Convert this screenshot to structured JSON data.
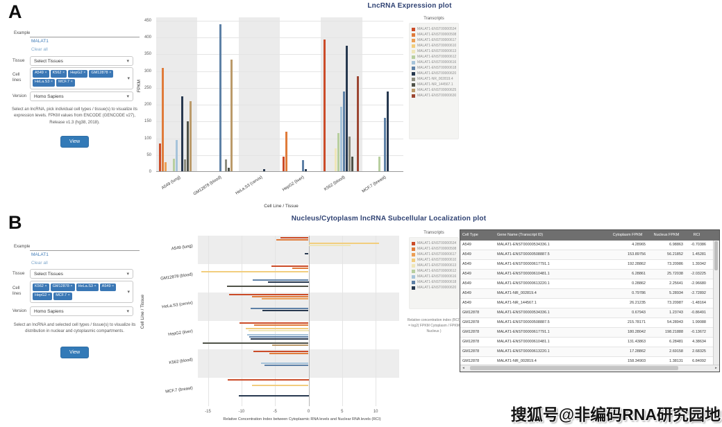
{
  "watermark": "搜狐号@非编码RNA研究园地",
  "panelA": {
    "section_label": "A",
    "title": "LncRNA Expression plot",
    "legend_title": "Transcripts",
    "sidebar": {
      "example_label": "Example",
      "gene_link": "MALAT1",
      "clear_link": "Clear all",
      "tissue_label": "Tissue",
      "tissue_value": "Select Tissues",
      "cells_label": "Cell lines",
      "cell_tags": [
        "A549",
        "K562",
        "HepG2",
        "GM12878",
        "HeLa.S3",
        "MCF.7"
      ],
      "version_label": "Version",
      "version_value": "Homo Sapiens",
      "help_text": "Select an lncRNA, pick individual cell types / tissue(s) to visualize its expression levels. FPKM values from ENCODE (GENCODE v27), Release v1.3 (hg38, 2018).",
      "view_button": "View"
    }
  },
  "panelB": {
    "section_label": "B",
    "title": "Nucleus/Cytoplasm lncRNA Subcellular Localization plot",
    "legend_title": "Transcripts",
    "legend_note": "Relative concentration index (RCI) = log2( FPKM Cytoplasm / FPKM Nucleus )",
    "sidebar": {
      "example_label": "Example",
      "gene_link": "MALAT1",
      "clear_link": "Clear all",
      "tissue_label": "Tissue",
      "tissue_value": "Select Tissues",
      "cells_label": "Cell lines",
      "cell_tags": [
        "K562",
        "GM12878",
        "HeLa.S3",
        "A549",
        "HepG2",
        "MCF.7"
      ],
      "version_label": "Version",
      "version_value": "Homo Sapiens",
      "help_text": "Select an lncRNA and selected cell types / tissue(s) to visualize its distribution in nuclear and cytoplasmic compartments.",
      "view_button": "View"
    }
  },
  "chart_data": [
    {
      "type": "bar",
      "title": "LncRNA Expression plot",
      "xlabel": "Cell Line / Tissue",
      "ylabel": "FPKM",
      "ylim": [
        0,
        460
      ],
      "yticks": [
        0,
        50,
        100,
        150,
        200,
        250,
        300,
        350,
        400,
        450
      ],
      "grid": true,
      "legend_position": "right",
      "categories": [
        "A549 (lung)",
        "GM12878 (blood)",
        "HeLa.S3 (cervix)",
        "HepG2 (liver)",
        "K562 (blood)",
        "MCF.7 (breast)"
      ],
      "series": [
        {
          "name": "MALAT1-ENST00000534336.1",
          "color": "#cb4b28",
          "values": [
            85,
            0,
            0,
            45,
            395,
            0
          ]
        },
        {
          "name": "MALAT1-ENST00000508887.5",
          "color": "#e07b3a",
          "values": [
            310,
            0,
            0,
            120,
            0,
            0
          ]
        },
        {
          "name": "MALAT1-ENST00000617791.1",
          "color": "#ec9f55",
          "values": [
            30,
            0,
            0,
            0,
            0,
            0
          ]
        },
        {
          "name": "MALAT1-ENST00000610481.1",
          "color": "#f2cd7d",
          "values": [
            0,
            0,
            0,
            0,
            0,
            0
          ]
        },
        {
          "name": "MALAT1-ENST00000613220.1",
          "color": "#efe6b8",
          "values": [
            0,
            0,
            0,
            0,
            70,
            0
          ]
        },
        {
          "name": "MALAT1-ENST00000612068.1",
          "color": "#b8cf9f",
          "values": [
            40,
            0,
            0,
            0,
            115,
            45
          ]
        },
        {
          "name": "MALAT1-ENST00000616527.1",
          "color": "#a6c3da",
          "values": [
            95,
            0,
            0,
            0,
            195,
            0
          ]
        },
        {
          "name": "MALAT1-ENST00000618925.1",
          "color": "#5d80a6",
          "values": [
            0,
            440,
            0,
            35,
            240,
            160
          ]
        },
        {
          "name": "MALAT1-ENST00000620902.1",
          "color": "#27384f",
          "values": [
            225,
            0,
            8,
            8,
            375,
            240
          ]
        },
        {
          "name": "MALAT1-NR_002819.4",
          "color": "#8d8d80",
          "values": [
            38,
            38,
            0,
            0,
            105,
            0
          ]
        },
        {
          "name": "MALAT1-NR_144567.1",
          "color": "#4f5248",
          "values": [
            150,
            12,
            0,
            0,
            45,
            0
          ]
        },
        {
          "name": "MALAT1-ENST00000625212.1",
          "color": "#bb9a6a",
          "values": [
            210,
            335,
            0,
            0,
            0,
            0
          ]
        },
        {
          "name": "MALAT1-ENST00000630615.1",
          "color": "#9c4632",
          "values": [
            0,
            0,
            0,
            0,
            285,
            0
          ]
        }
      ]
    },
    {
      "type": "bar-horizontal",
      "title": "Nucleus/Cytoplasm lncRNA Subcellular Localization plot",
      "xlabel": "Relative Concentration Index between Cytoplasmic RNA levels and Nuclear RNA levels (RCI)",
      "ylabel": "Cell Line / Tissue",
      "xlim": [
        -16.5,
        13.5
      ],
      "xticks": [
        -15,
        -10,
        -5,
        0,
        5,
        10
      ],
      "grid": true,
      "legend_position": "right",
      "categories": [
        "A549 (lung)",
        "GM12878 (blood)",
        "HeLa.S3 (cervix)",
        "HepG2 (liver)",
        "K562 (blood)",
        "MCF.7 (breast)"
      ],
      "series": [
        {
          "name": "MALAT1-ENST00000534336.1",
          "color": "#cb4b28",
          "values": [
            -4.2,
            -5.5,
            -11.8,
            -10.3,
            -8.2,
            -12.1
          ]
        },
        {
          "name": "MALAT1-ENST00000508887.5",
          "color": "#e07b3a",
          "values": [
            -4.8,
            -2.4,
            -8.4,
            -8.1,
            -5.8,
            0
          ]
        },
        {
          "name": "MALAT1-ENST00000617791.1",
          "color": "#ec9f55",
          "values": [
            0,
            0,
            -7.0,
            0,
            0,
            0
          ]
        },
        {
          "name": "MALAT1-ENST00000610481.1",
          "color": "#f2cd7d",
          "values": [
            10.5,
            -16,
            0,
            -9.4,
            0,
            -8.4
          ]
        },
        {
          "name": "MALAT1-ENST00000613220.1",
          "color": "#efe6b8",
          "values": [
            6.3,
            0,
            0,
            -9.0,
            0,
            0
          ]
        },
        {
          "name": "MALAT1-ENST00000612068.1",
          "color": "#b8cf9f",
          "values": [
            0,
            0,
            0,
            0,
            0,
            0
          ]
        },
        {
          "name": "MALAT1-ENST00000616527.1",
          "color": "#a6c3da",
          "values": [
            0,
            0,
            0,
            -9.2,
            -7.1,
            0
          ]
        },
        {
          "name": "MALAT1-ENST00000618925.1",
          "color": "#5d80a6",
          "values": [
            0,
            -8.3,
            -8.6,
            -8.8,
            -6.6,
            0
          ]
        },
        {
          "name": "MALAT1-ENST00000620902.1",
          "color": "#27384f",
          "values": [
            -0.6,
            -6.1,
            -6.9,
            -8.6,
            0,
            -10.4
          ]
        },
        {
          "name": "MALAT1-NR_002819.4",
          "color": "#8d8d80",
          "values": [
            0,
            0,
            0,
            0,
            0,
            0
          ]
        },
        {
          "name": "MALAT1-NR_144567.1",
          "color": "#4f5248",
          "values": [
            0,
            -12.2,
            0,
            -15.8,
            0,
            0
          ]
        },
        {
          "name": "MALAT1-ENST00000625212.1",
          "color": "#bb9a6a",
          "values": [
            0,
            0,
            0,
            -5.4,
            0,
            0
          ]
        },
        {
          "name": "MALAT1-ENST00000630615.1",
          "color": "#9c4632",
          "values": [
            0,
            0,
            0,
            0,
            0,
            0
          ]
        }
      ]
    }
  ],
  "table": {
    "columns": [
      "Cell Type",
      "Gene Name (Transcript ID)",
      "Cytoplasm FPKM",
      "Nucleus FPKM",
      "RCI"
    ],
    "rows": [
      [
        "A549",
        "MALAT1-ENST00000534336.1",
        "4.28965",
        "6.98863",
        "-0.70386"
      ],
      [
        "A549",
        "MALAT1-ENST00000508887.5",
        "153.89756",
        "56.21852",
        "1.45281"
      ],
      [
        "A549",
        "MALAT1-ENST00000617791.1",
        "192.28862",
        "73.20986",
        "1.39342"
      ],
      [
        "A549",
        "MALAT1-ENST00000610481.1",
        "6.28861",
        "25.72038",
        "-2.03225"
      ],
      [
        "A549",
        "MALAT1-ENST00000613220.1",
        "0.28862",
        "2.25641",
        "-2.96680"
      ],
      [
        "A549",
        "MALAT1-NR_002819.4",
        "0.79786",
        "5.28934",
        "-2.72892"
      ],
      [
        "A549",
        "MALAT1-NR_144567.1",
        "26.21235",
        "73.20987",
        "-1.48164"
      ],
      [
        "GM12878",
        "MALAT1-ENST00000534336.1",
        "0.67943",
        "1.23743",
        "-0.86491"
      ],
      [
        "GM12878",
        "MALAT1-ENST00000508887.5",
        "215.78171",
        "54.28943",
        "1.99088"
      ],
      [
        "GM12878",
        "MALAT1-ENST00000617791.1",
        "180.28042",
        "198.21888",
        "-0.13672"
      ],
      [
        "GM12878",
        "MALAT1-ENST00000610481.1",
        "131.43863",
        "6.28481",
        "4.38634"
      ],
      [
        "GM12878",
        "MALAT1-ENST00000613220.1",
        "17.28862",
        "2.69158",
        "2.68325"
      ],
      [
        "GM12878",
        "MALAT1-NR_002819.4",
        "158.34903",
        "1.38131",
        "6.84092"
      ],
      [
        "GM12878",
        "MALAT1-NR_144567.1",
        "352.28842",
        "45.38931",
        "2.95643"
      ],
      [
        "HeLa.S3",
        "MALAT1-ENST00000534336.1",
        "4.13283",
        "1.88935",
        "1.12903"
      ]
    ]
  }
}
